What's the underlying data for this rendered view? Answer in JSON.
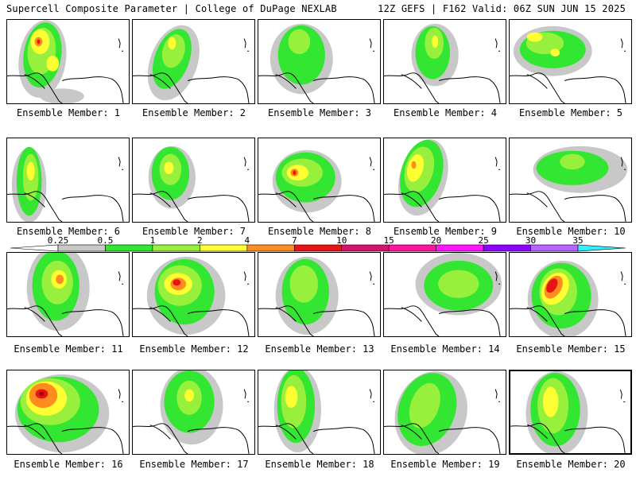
{
  "header": {
    "title": "Supercell Composite Parameter | College of DuPage NEXLAB",
    "run_info": "12Z GEFS | F162 Valid: 06Z SUN JUN 15 2025"
  },
  "members": [
    {
      "label": "Ensemble Member: 1"
    },
    {
      "label": "Ensemble Member: 2"
    },
    {
      "label": "Ensemble Member: 3"
    },
    {
      "label": "Ensemble Member: 4"
    },
    {
      "label": "Ensemble Member: 5"
    },
    {
      "label": "Ensemble Member: 6"
    },
    {
      "label": "Ensemble Member: 7"
    },
    {
      "label": "Ensemble Member: 8"
    },
    {
      "label": "Ensemble Member: 9"
    },
    {
      "label": "Ensemble Member: 10"
    },
    {
      "label": "Ensemble Member: 11"
    },
    {
      "label": "Ensemble Member: 12"
    },
    {
      "label": "Ensemble Member: 13"
    },
    {
      "label": "Ensemble Member: 14"
    },
    {
      "label": "Ensemble Member: 15"
    },
    {
      "label": "Ensemble Member: 16"
    },
    {
      "label": "Ensemble Member: 17"
    },
    {
      "label": "Ensemble Member: 18"
    },
    {
      "label": "Ensemble Member: 19"
    },
    {
      "label": "Ensemble Member: 20",
      "selected": true
    }
  ],
  "legend": {
    "thresholds": [
      "0.25",
      "0.5",
      "1",
      "2",
      "4",
      "7",
      "10",
      "15",
      "20",
      "25",
      "30",
      "35"
    ],
    "colors": [
      "#c8c8c8",
      "#32e632",
      "#96f03c",
      "#ffff32",
      "#ff8c1e",
      "#e61414",
      "#d2146e",
      "#ff14a0",
      "#ff14ff",
      "#8c00ff",
      "#b464ff",
      "#32f0ff"
    ]
  },
  "colors": {
    "gray": "#c8c8c8",
    "green": "#32e632",
    "lightgreen": "#96f03c",
    "yellow": "#ffff32",
    "orange": "#ff8c1e",
    "red": "#e61414",
    "darkred": "#a00000"
  }
}
